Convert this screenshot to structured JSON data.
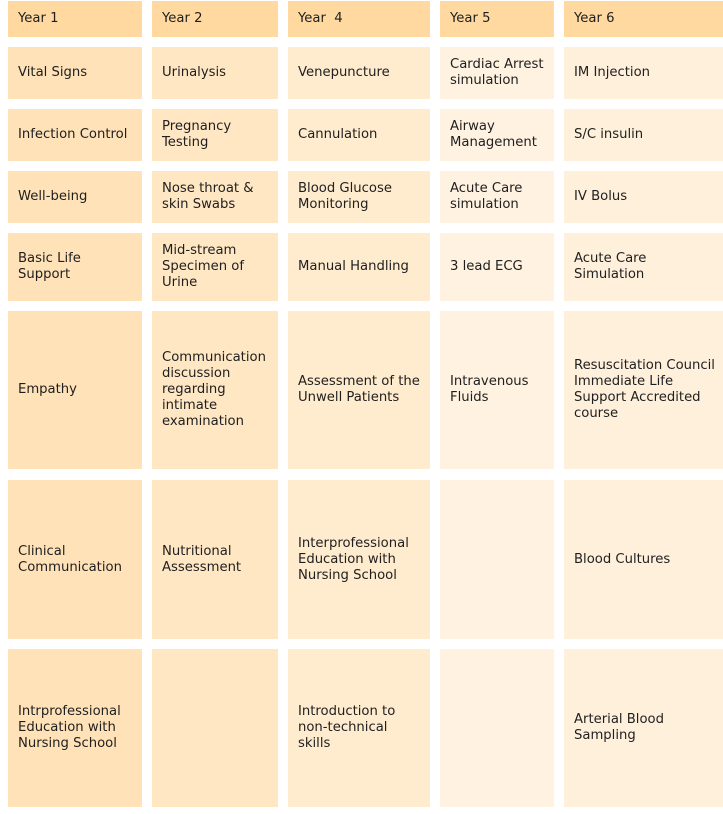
{
  "colors": {
    "header_bg": "#ffd9a0",
    "col1_bg": "#ffe2b8",
    "col2_bg": "#ffe7c4",
    "col3_bg": "#ffebcd",
    "col4_bg": "#fff2e0",
    "col5_bg": "#fff0dc",
    "text": "#1f1f1f"
  },
  "table": {
    "headers": [
      "Year 1",
      "Year 2",
      "Year  4",
      "Year 5",
      "Year 6"
    ],
    "rows": [
      [
        "Vital Signs",
        "Urinalysis",
        "Venepuncture",
        "Cardiac Arrest simulation",
        "IM Injection"
      ],
      [
        "Infection Control",
        "Pregnancy Testing",
        "Cannulation",
        "Airway Management",
        "S/C insulin"
      ],
      [
        "Well-being",
        "Nose throat & skin Swabs",
        "Blood Glucose Monitoring",
        "Acute Care simulation",
        "IV Bolus"
      ],
      [
        "Basic Life Support",
        "Mid-stream Specimen of Urine",
        "Manual Handling",
        "3 lead ECG",
        "Acute Care Simulation"
      ],
      [
        "Empathy",
        "Communication discussion regarding intimate examination",
        "Assessment of the Unwell Patients",
        "Intravenous Fluids",
        "Resuscitation Council Immediate Life Support Accredited course"
      ],
      [
        "Clinical Communication",
        "Nutritional Assessment",
        "Interprofessional Education with Nursing School",
        "",
        "Blood Cultures"
      ],
      [
        "Intrprofessional Education with Nursing School",
        "",
        "Introduction to non-technical skills",
        "",
        "Arterial Blood Sampling"
      ]
    ]
  }
}
